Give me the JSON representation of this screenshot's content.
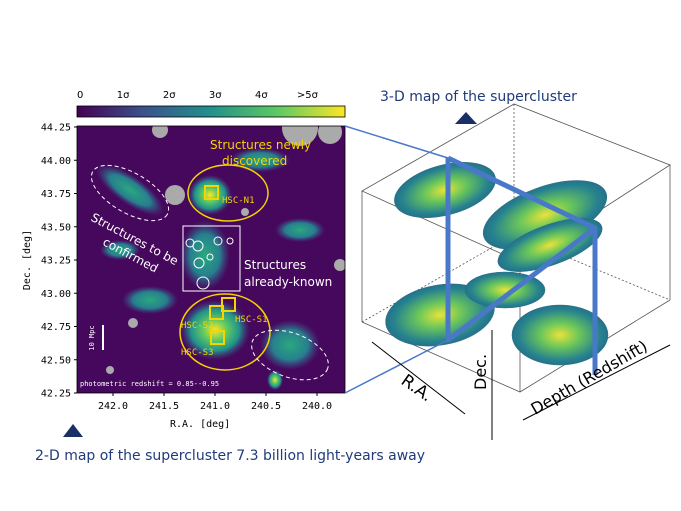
{
  "colorbar": {
    "labels": [
      "0",
      "1σ",
      "2σ",
      "3σ",
      "4σ",
      ">5σ"
    ]
  },
  "map": {
    "y_axis": {
      "label": "Dec. [deg]",
      "ticks": [
        "44.25",
        "44.00",
        "43.75",
        "43.50",
        "43.25",
        "43.00",
        "42.75",
        "42.50",
        "42.25"
      ]
    },
    "x_axis": {
      "label": "R.A. [deg]",
      "ticks": [
        "242.0",
        "241.5",
        "241.0",
        "240.5",
        "240.0"
      ]
    },
    "newly_discovered": [
      "Structures newly",
      "discovered"
    ],
    "to_be_confirmed": [
      "Structures to be",
      "confirmed"
    ],
    "already_known": [
      "Structures",
      "already-known"
    ],
    "regions": [
      "HSC-N1",
      "HSC-S1",
      "HSC-S2",
      "HSC-S3"
    ],
    "scale_bar": "10 Mpc",
    "footnote": "photometric redshift = 0.85--0.95"
  },
  "cube": {
    "title": "3-D map of the supercluster",
    "axes": [
      "R.A.",
      "Dec.",
      "Depth (Redshift)"
    ]
  },
  "caption": "2-D map of the supercluster 7.3 billion light-years away"
}
